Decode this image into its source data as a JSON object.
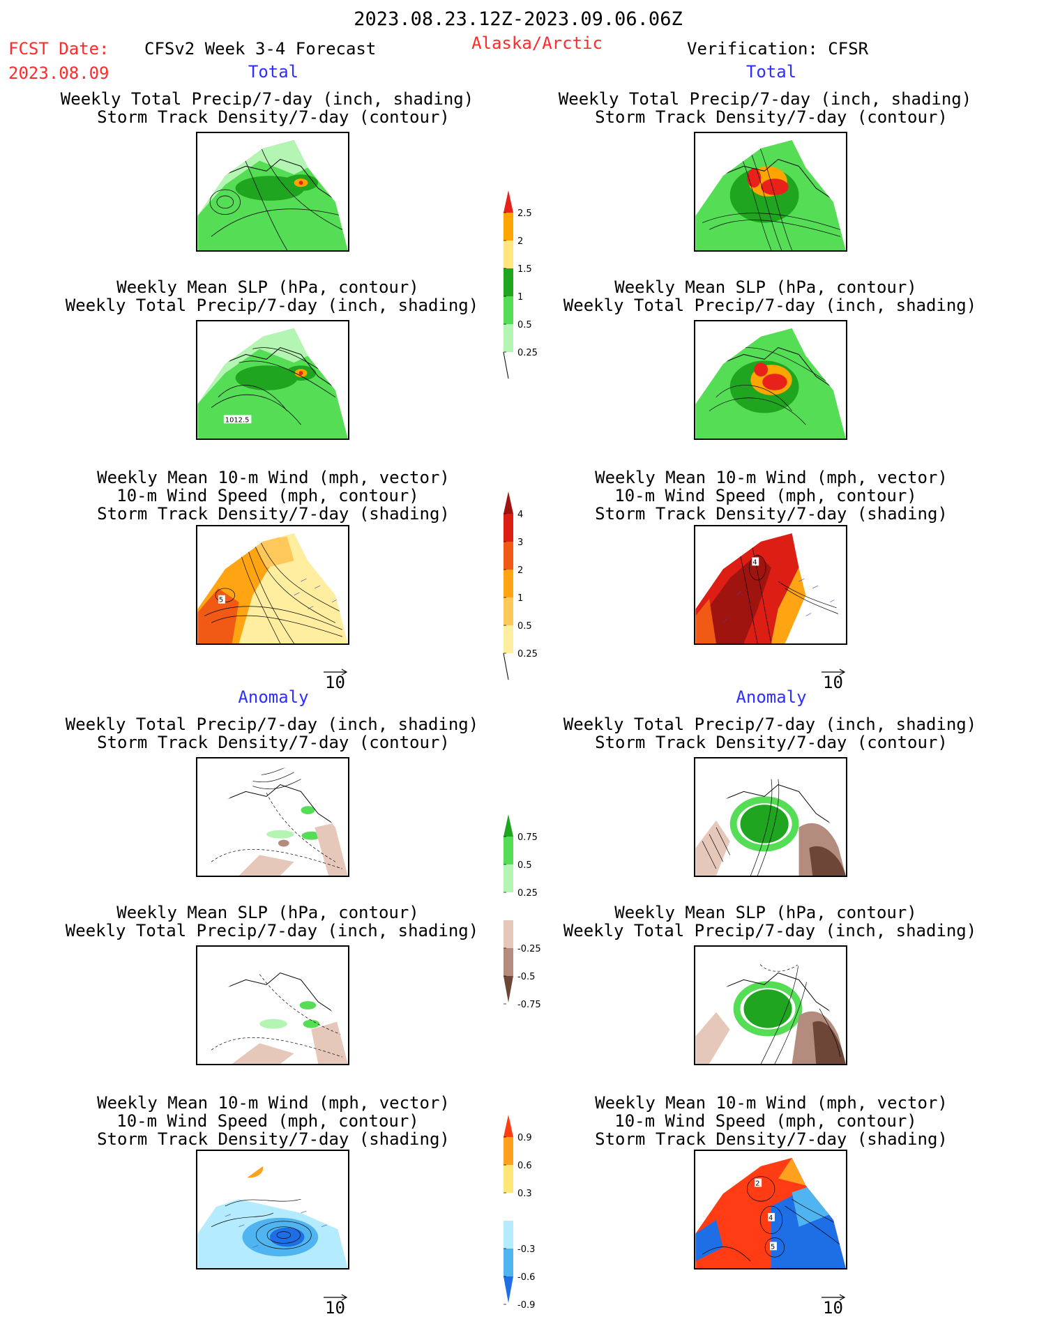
{
  "header": {
    "date_range": "2023.08.23.12Z-2023.09.06.06Z",
    "fcst_label": "FCST Date:",
    "fcst_date": "2023.08.09",
    "model": "CFSv2 Week 3-4 Forecast",
    "region": "Alaska/Arctic",
    "verification": "Verification: CFSR"
  },
  "sections": {
    "total": "Total",
    "anomaly": "Anomaly"
  },
  "panel_titles": {
    "precip_storm": [
      "Weekly Total Precip/7-day (inch, shading)",
      "Storm Track Density/7-day (contour)"
    ],
    "slp_precip": [
      "Weekly Mean SLP (hPa, contour)",
      "Weekly Total Precip/7-day (inch, shading)"
    ],
    "wind_storm": [
      "Weekly Mean 10-m Wind (mph, vector)",
      "10-m Wind Speed (mph, contour)",
      "Storm Track Density/7-day (shading)"
    ]
  },
  "map_labels": {
    "slp_contour": "1012.5",
    "wind_total_left": "5",
    "wind_total_right": "4",
    "wind_anom_right_a": "2",
    "wind_anom_right_b": "4",
    "wind_anom_right_c": "5"
  },
  "vector_key": "10",
  "colorbars": {
    "precip_total": {
      "labels": [
        "2.5",
        "2",
        "1.5",
        "1",
        "0.5",
        "0.25"
      ],
      "colors": [
        "#e8221a",
        "#ffa500",
        "#ffe680",
        "#1fa51f",
        "#55dd55",
        "#b4f5b4"
      ]
    },
    "storm_total": {
      "labels": [
        "4",
        "3",
        "2",
        "1",
        "0.5",
        "0.25"
      ],
      "colors": [
        "#a0140f",
        "#dd1e14",
        "#f05a14",
        "#ffa514",
        "#ffc85a",
        "#ffeea0"
      ]
    },
    "precip_anom": {
      "labels": [
        "0.75",
        "0.5",
        "0.25",
        "-0.25",
        "-0.5",
        "-0.75"
      ],
      "colors": [
        "#1fa51f",
        "#55dd55",
        "#b4f5b4",
        "#ffffff",
        "#e6c8bb",
        "#b48c7d",
        "#6e4637"
      ]
    },
    "storm_anom": {
      "labels": [
        "0.9",
        "0.6",
        "0.3",
        "-0.3",
        "-0.6",
        "-0.9"
      ],
      "colors": [
        "#ff3c14",
        "#ffa01e",
        "#ffe678",
        "#ffffff",
        "#b4ebff",
        "#50b4f0",
        "#1e6ee6"
      ]
    }
  }
}
